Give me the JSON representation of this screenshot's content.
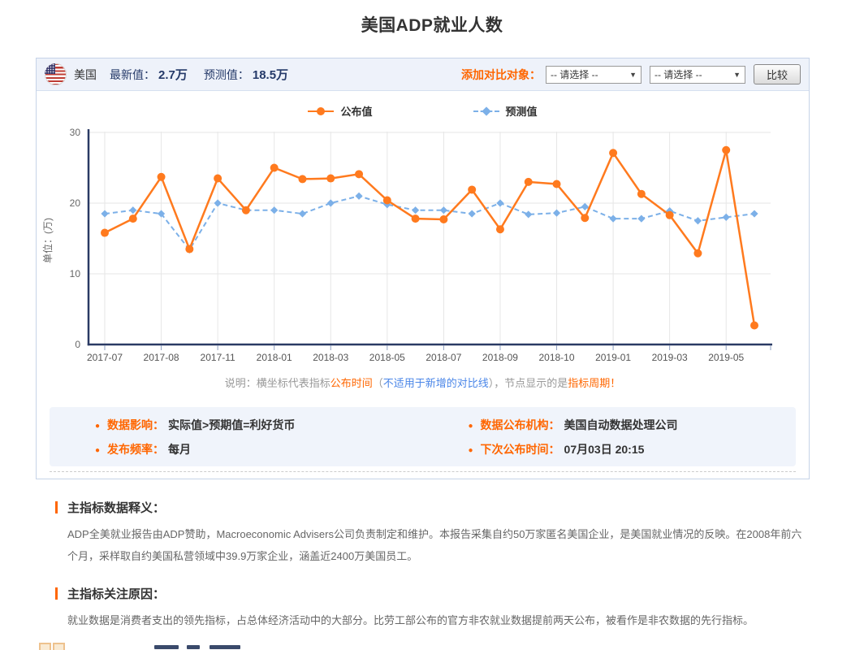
{
  "page_title": "美国ADP就业人数",
  "panel": {
    "header": {
      "country": "美国",
      "flag": "us-flag",
      "latest_label": "最新值：",
      "latest_value": "2.7万",
      "forecast_label": "预测值：",
      "forecast_value": "18.5万",
      "compare_label": "添加对比对象：",
      "select_placeholder": "-- 请选择 --",
      "compare_button": "比较"
    },
    "note_parts": [
      {
        "text": "说明：横坐标代表指标",
        "c": "gray"
      },
      {
        "text": "公布时间",
        "c": "orange"
      },
      {
        "text": "（",
        "c": "gray"
      },
      {
        "text": "不适用于新增的对比线",
        "c": "blue"
      },
      {
        "text": "），节点显示的是",
        "c": "gray"
      },
      {
        "text": "指标周期",
        "c": "orange"
      },
      {
        "text": "！",
        "c": "orange"
      }
    ],
    "info_items": [
      {
        "label": "数据影响：",
        "value": "实际值>预期值=利好货币"
      },
      {
        "label": "数据公布机构：",
        "value": "美国自动数据处理公司"
      },
      {
        "label": "发布频率：",
        "value": "每月"
      },
      {
        "label": "下次公布时间：",
        "value": "07月03日 20:15"
      }
    ]
  },
  "chart_data": {
    "type": "line",
    "ylabel": "单位：(万)",
    "ylim": [
      0,
      30
    ],
    "yticks": [
      0,
      10,
      20,
      30
    ],
    "grid": true,
    "legend_position": "top-center",
    "x_tick_labels": [
      "2017-07",
      "2017-08",
      "2017-11",
      "2018-01",
      "2018-03",
      "2018-05",
      "2018-07",
      "2018-09",
      "2018-10",
      "2019-01",
      "2019-03",
      "2019-05"
    ],
    "labeled_indices": [
      0,
      2,
      4,
      6,
      8,
      10,
      12,
      14,
      16,
      18,
      20,
      22
    ],
    "series": [
      {
        "name": "公布值",
        "color": "#ff7a1e",
        "style": "solid",
        "marker": "circle",
        "values": [
          15.8,
          17.8,
          23.7,
          13.5,
          23.5,
          19.0,
          25.0,
          23.4,
          23.5,
          24.1,
          20.4,
          17.8,
          17.7,
          21.9,
          16.3,
          23.0,
          22.7,
          17.9,
          27.1,
          21.3,
          18.3,
          12.9,
          27.5,
          2.7
        ]
      },
      {
        "name": "预测值",
        "color": "#7cb0e8",
        "style": "dashed",
        "marker": "diamond",
        "values": [
          18.5,
          19.0,
          18.5,
          13.4,
          20.0,
          19.0,
          19.0,
          18.5,
          20.0,
          21.0,
          19.8,
          19.0,
          19.0,
          18.5,
          20.0,
          18.4,
          18.6,
          19.5,
          17.8,
          17.8,
          18.9,
          17.5,
          18.0,
          18.5
        ]
      }
    ]
  },
  "sections": [
    {
      "heading": "主指标数据释义：",
      "body": "ADP全美就业报告由ADP赞助，Macroeconomic Advisers公司负责制定和维护。本报告采集自约50万家匿名美国企业，是美国就业情况的反映。在2008年前六个月，采样取自约美国私营领域中39.9万家企业，涵盖近2400万美国员工。"
    },
    {
      "heading": "主指标关注原因：",
      "body": "就业数据是消费者支出的领先指标，占总体经济活动中的大部分。比劳工部公布的官方非农就业数据提前两天公布，被看作是非农数据的先行指标。"
    }
  ],
  "colors": {
    "accent_orange": "#ff6600",
    "series_actual": "#ff7a1e",
    "series_forecast": "#7cb0e8",
    "value_navy": "#253a69",
    "axis_navy": "#2a3a64",
    "link_blue": "#4a86e8",
    "panel_bg": "#eef2fa",
    "info_bg": "#f0f4fb"
  }
}
